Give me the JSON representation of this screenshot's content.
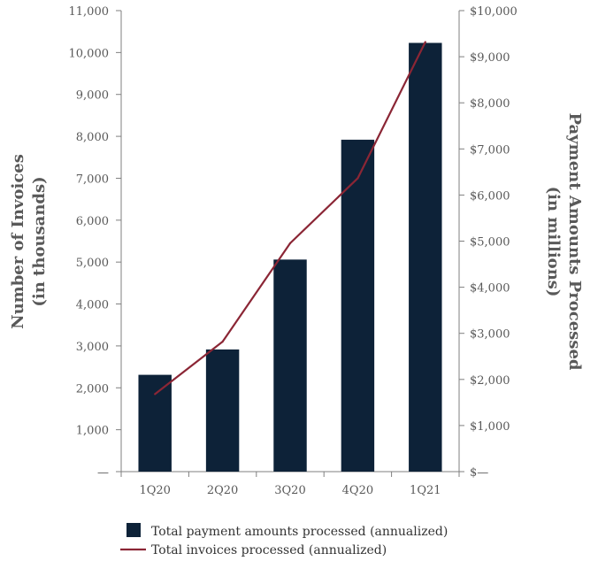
{
  "chart_data": {
    "type": "bar",
    "categories": [
      "1Q20",
      "2Q20",
      "3Q20",
      "4Q20",
      "1Q21"
    ],
    "series": [
      {
        "name": "Total payment amounts processed (annualized)",
        "type": "bar",
        "axis": "right",
        "values": [
          2100,
          2650,
          4600,
          7200,
          9300
        ],
        "color": "#0d2238"
      },
      {
        "name": "Total invoices processed (annualized)",
        "type": "line",
        "axis": "left",
        "values": [
          1850,
          3100,
          5450,
          7000,
          10250
        ],
        "color": "#8b2635"
      }
    ],
    "y_left": {
      "label_line1": "Number of Invoices",
      "label_line2": "(in thousands)",
      "ylim": [
        0,
        11000
      ],
      "ticks": [
        {
          "value": 0,
          "label": "—"
        },
        {
          "value": 1000,
          "label": "1,000"
        },
        {
          "value": 2000,
          "label": "2,000"
        },
        {
          "value": 3000,
          "label": "3,000"
        },
        {
          "value": 4000,
          "label": "4,000"
        },
        {
          "value": 5000,
          "label": "5,000"
        },
        {
          "value": 6000,
          "label": "6,000"
        },
        {
          "value": 7000,
          "label": "7,000"
        },
        {
          "value": 8000,
          "label": "8,000"
        },
        {
          "value": 9000,
          "label": "9,000"
        },
        {
          "value": 10000,
          "label": "10,000"
        },
        {
          "value": 11000,
          "label": "11,000"
        }
      ]
    },
    "y_right": {
      "label_line1": "Payment Amounts Processed",
      "label_line2": "(in millions)",
      "ylim": [
        0,
        10000
      ],
      "ticks": [
        {
          "value": 0,
          "label": "$—"
        },
        {
          "value": 1000,
          "label": "$1,000"
        },
        {
          "value": 2000,
          "label": "$2,000"
        },
        {
          "value": 3000,
          "label": "$3,000"
        },
        {
          "value": 4000,
          "label": "$4,000"
        },
        {
          "value": 5000,
          "label": "$5,000"
        },
        {
          "value": 6000,
          "label": "$6,000"
        },
        {
          "value": 7000,
          "label": "$7,000"
        },
        {
          "value": 8000,
          "label": "$8,000"
        },
        {
          "value": 9000,
          "label": "$9,000"
        },
        {
          "value": 10000,
          "label": "$10,000"
        }
      ]
    },
    "grid": false,
    "legend_position": "bottom"
  }
}
